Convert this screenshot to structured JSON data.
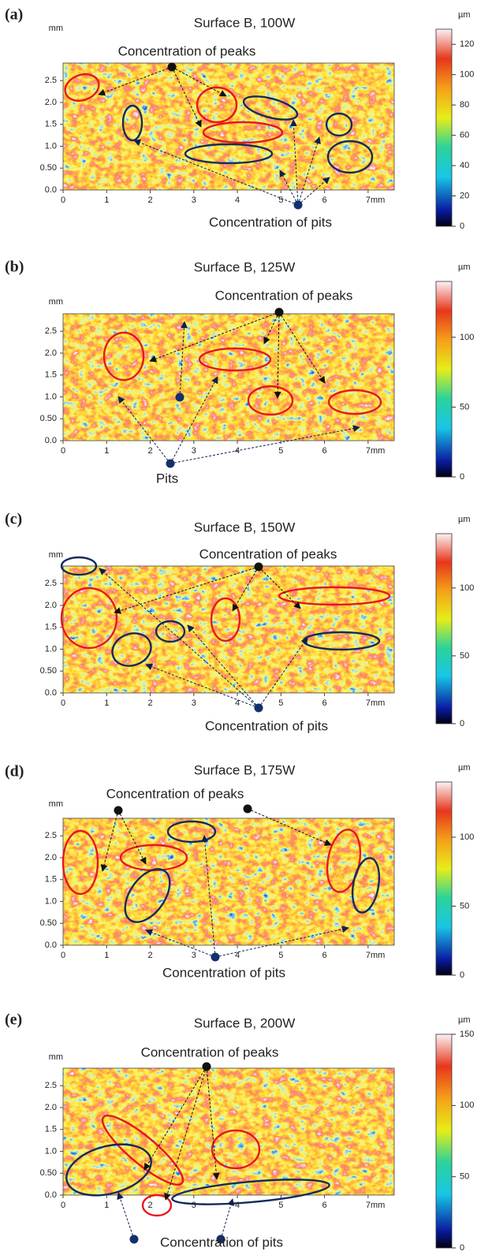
{
  "chart_data": [
    {
      "type": "surface-map",
      "label": "(a)",
      "title": "Surface B, 100W",
      "y_label": "mm",
      "colorbar_label": "µm",
      "annotations": [
        "Concentration  of peaks",
        "Concentration  of pits"
      ],
      "xlim": [
        0,
        7.6
      ],
      "ylim": [
        0,
        2.9
      ],
      "xticks": [
        0,
        1,
        2,
        3,
        4,
        5,
        6,
        {
          "value": 7,
          "label": "7mm"
        }
      ],
      "yticks": [
        {
          "value": 0,
          "label": "0.0"
        },
        {
          "value": 0.5,
          "label": "0.50"
        },
        {
          "value": 1,
          "label": "1.0"
        },
        1.5,
        {
          "value": 2,
          "label": "2.0"
        },
        2.5
      ],
      "clim": [
        0,
        130
      ],
      "cticks": [
        0,
        20,
        40,
        60,
        80,
        100,
        120
      ]
    },
    {
      "type": "surface-map",
      "label": "(b)",
      "title": "Surface B, 125W",
      "y_label": "mm",
      "colorbar_label": "µm",
      "annotations": [
        "Concentration  of peaks",
        "Pits"
      ],
      "xlim": [
        0,
        7.6
      ],
      "ylim": [
        0,
        2.9
      ],
      "xticks": [
        0,
        1,
        2,
        3,
        4,
        5,
        6,
        {
          "value": 7,
          "label": "7mm"
        }
      ],
      "yticks": [
        {
          "value": 0,
          "label": "0.0"
        },
        {
          "value": 0.5,
          "label": "0.50"
        },
        {
          "value": 1,
          "label": "1.0"
        },
        1.5,
        {
          "value": 2,
          "label": "2.0"
        },
        2.5
      ],
      "clim": [
        0,
        140
      ],
      "cticks": [
        0,
        50,
        100
      ]
    },
    {
      "type": "surface-map",
      "label": "(c)",
      "title": "Surface B, 150W",
      "y_label": "mm",
      "colorbar_label": "µm",
      "annotations": [
        "Concentration  of peaks",
        "Concentration  of pits"
      ],
      "xlim": [
        0,
        7.6
      ],
      "ylim": [
        0,
        2.9
      ],
      "xticks": [
        0,
        1,
        2,
        3,
        4,
        5,
        6,
        {
          "value": 7,
          "label": "7mm"
        }
      ],
      "yticks": [
        {
          "value": 0,
          "label": "0.0"
        },
        {
          "value": 0.5,
          "label": "0.50"
        },
        {
          "value": 1,
          "label": "1.0"
        },
        1.5,
        {
          "value": 2,
          "label": "2.0"
        },
        2.5
      ],
      "clim": [
        0,
        140
      ],
      "cticks": [
        0,
        50,
        100
      ]
    },
    {
      "type": "surface-map",
      "label": "(d)",
      "title": "Surface B, 175W",
      "y_label": "mm",
      "colorbar_label": "µm",
      "annotations": [
        "Concentration  of peaks",
        "Concentration  of pits"
      ],
      "xlim": [
        0,
        7.6
      ],
      "ylim": [
        0,
        2.9
      ],
      "xticks": [
        0,
        1,
        2,
        3,
        4,
        5,
        6,
        {
          "value": 7,
          "label": "7mm"
        }
      ],
      "yticks": [
        {
          "value": 0,
          "label": "0.0"
        },
        {
          "value": 0.5,
          "label": "0.50"
        },
        {
          "value": 1,
          "label": "1.0"
        },
        1.5,
        {
          "value": 2,
          "label": "2.0"
        },
        2.5
      ],
      "clim": [
        0,
        140
      ],
      "cticks": [
        0,
        50,
        100
      ]
    },
    {
      "type": "surface-map",
      "label": "(e)",
      "title": "Surface B, 200W",
      "y_label": "mm",
      "colorbar_label": "µm",
      "annotations": [
        "Concentration  of peaks",
        "Concentration  of pits"
      ],
      "xlim": [
        0,
        7.6
      ],
      "ylim": [
        0,
        2.9
      ],
      "xticks": [
        0,
        1,
        2,
        3,
        4,
        5,
        6,
        {
          "value": 7,
          "label": "7mm"
        }
      ],
      "yticks": [
        {
          "value": 0,
          "label": "0.0"
        },
        {
          "value": 0.5,
          "label": "0.50"
        },
        {
          "value": 1,
          "label": "1.0"
        },
        1.5,
        {
          "value": 2,
          "label": "2.0"
        },
        2.5
      ],
      "clim": [
        0,
        150
      ],
      "cticks": [
        0,
        50,
        100,
        150
      ]
    }
  ]
}
